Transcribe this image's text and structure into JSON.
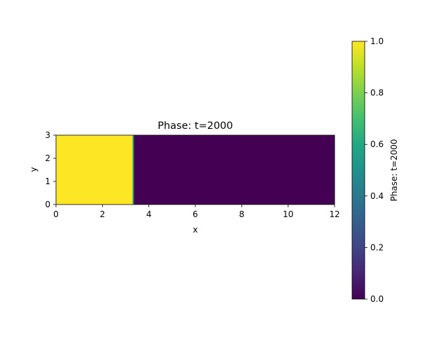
{
  "chart_data": {
    "type": "heatmap",
    "title": "Phase: t=2000",
    "xlabel": "x",
    "ylabel": "y",
    "xlim": [
      0,
      12
    ],
    "ylim": [
      0,
      3
    ],
    "x_ticks": [
      0,
      2,
      4,
      6,
      8,
      10,
      12
    ],
    "y_ticks": [
      0,
      1,
      2,
      3
    ],
    "regions": [
      {
        "x_start": 0,
        "x_end": 3.33,
        "value": 1.0
      },
      {
        "x_start": 3.33,
        "x_end": 12,
        "value": 0.0
      }
    ],
    "interface": {
      "x": 3.33,
      "value": 0.5
    },
    "colormap": "viridis",
    "colorbar": {
      "label": "Phase: t=2000",
      "range": [
        0,
        1
      ],
      "ticks": [
        "0.0",
        "0.2",
        "0.4",
        "0.6",
        "0.8",
        "1.0"
      ]
    }
  }
}
